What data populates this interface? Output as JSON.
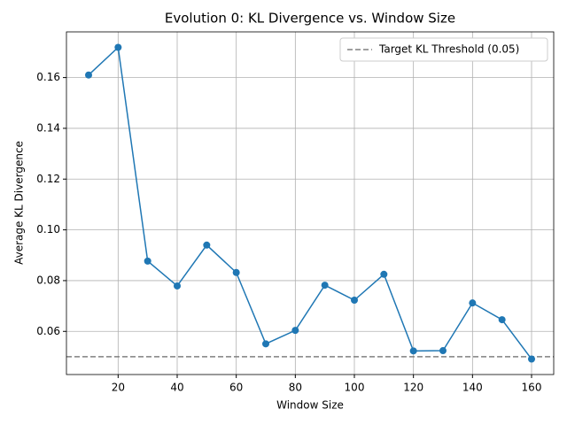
{
  "chart_data": {
    "type": "line",
    "title": "Evolution 0: KL Divergence vs. Window Size",
    "x_label": "Window Size",
    "y_label": "Average KL Divergence",
    "x": [
      10,
      20,
      30,
      40,
      50,
      60,
      70,
      80,
      90,
      100,
      110,
      120,
      130,
      140,
      150,
      160
    ],
    "series": [
      {
        "name": null,
        "color": "#1f77b4",
        "values": [
          0.161,
          0.1719,
          0.0877,
          0.0779,
          0.094,
          0.0832,
          0.0551,
          0.0604,
          0.0782,
          0.0723,
          0.0825,
          0.0523,
          0.0524,
          0.0712,
          0.0646,
          0.0491
        ]
      }
    ],
    "reference_line": {
      "name": "Target KL Threshold (0.05)",
      "value": 0.05,
      "color": "#808080"
    },
    "xlim": [
      2.5,
      167.5
    ],
    "xticks": [
      20,
      40,
      60,
      80,
      100,
      120,
      140,
      160
    ],
    "ylim": [
      0.043,
      0.178
    ],
    "yticks": [
      {
        "value": 0.06,
        "label": "0.06"
      },
      {
        "value": 0.08,
        "label": "0.08"
      },
      {
        "value": 0.1,
        "label": "0.10"
      },
      {
        "value": 0.12,
        "label": "0.12"
      },
      {
        "value": 0.14,
        "label": "0.14"
      },
      {
        "value": 0.16,
        "label": "0.16"
      }
    ],
    "grid": true,
    "legend": "upper right"
  }
}
